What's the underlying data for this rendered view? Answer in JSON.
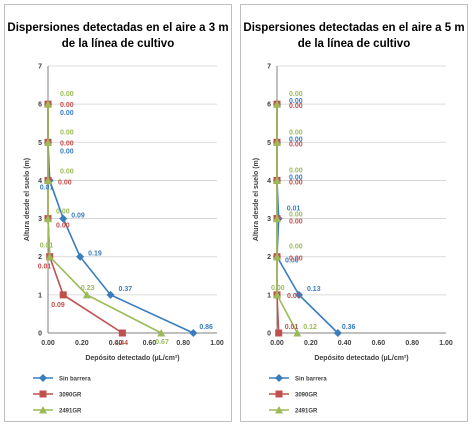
{
  "colors": {
    "series": [
      "#3a7dbf",
      "#c0504d",
      "#9bbb59"
    ],
    "grid": "#d0d0d0",
    "axis": "#808080"
  },
  "chart_data": [
    {
      "type": "line",
      "title_lines": [
        "Dispersiones detectadas en el aire a 3 m",
        "de la línea de cultivo"
      ],
      "xlabel": "Depósito detectado (µL/cm²)",
      "ylabel": "Altura desde el suelo (m)",
      "xlim": [
        0,
        1
      ],
      "ylim": [
        0,
        7
      ],
      "xticks": [
        "0.00",
        "0.20",
        "0.40",
        "0.60",
        "0.80",
        "1.00"
      ],
      "yticks": [
        "0",
        "1",
        "2",
        "3",
        "4",
        "5",
        "6",
        "7"
      ],
      "grid": "horizontal",
      "legend": "bottom",
      "series": [
        {
          "name": "Sin barrera",
          "marker": "diamond",
          "x": [
            0.86,
            0.37,
            0.19,
            0.09,
            0.01,
            0.0,
            0.0
          ],
          "y": [
            0,
            1,
            2,
            3,
            4,
            5,
            6
          ],
          "labels": [
            "0.86",
            "0.37",
            "0.19",
            "0.09",
            "0.01",
            "0.00",
            "0.00"
          ]
        },
        {
          "name": "3090GR",
          "marker": "square",
          "x": [
            0.44,
            0.09,
            0.01,
            0.0,
            0.0,
            0.0,
            0.0
          ],
          "y": [
            0,
            1,
            2,
            3,
            4,
            5,
            6
          ],
          "labels": [
            "0.44",
            "0.09",
            "0.01",
            "0.00",
            "0.00",
            "0.00",
            "0.00"
          ]
        },
        {
          "name": "2491GR",
          "marker": "triangle",
          "x": [
            0.67,
            0.23,
            0.01,
            0.0,
            0.0,
            0.0,
            0.0
          ],
          "y": [
            0,
            1,
            2,
            3,
            4,
            5,
            6
          ],
          "labels": [
            "0.67",
            "0.23",
            "0.01",
            "0.00",
            "0.00",
            "0.00",
            "0.00"
          ]
        }
      ]
    },
    {
      "type": "line",
      "title_lines": [
        "Dispersiones detectadas en el aire a 5 m",
        "de la línea de cultivo"
      ],
      "xlabel": "Depósito detectado (µL/cm²)",
      "ylabel": "Altura desde el suelo (m)",
      "xlim": [
        0,
        1
      ],
      "ylim": [
        0,
        7
      ],
      "xticks": [
        "0.00",
        "0.20",
        "0.40",
        "0.60",
        "0.80",
        "1.00"
      ],
      "yticks": [
        "0",
        "1",
        "2",
        "3",
        "4",
        "5",
        "6",
        "7"
      ],
      "grid": "horizontal",
      "legend": "bottom",
      "series": [
        {
          "name": "Sin barrera",
          "marker": "diamond",
          "x": [
            0.36,
            0.13,
            0.0,
            0.01,
            0.0,
            0.0,
            0.0
          ],
          "y": [
            0,
            1,
            2,
            3,
            4,
            5,
            6
          ],
          "labels": [
            "0.36",
            "0.13",
            "0.00",
            "0.01",
            "0.00",
            "0.00",
            "0.00"
          ]
        },
        {
          "name": "3090GR",
          "marker": "square",
          "x": [
            0.01,
            0.0,
            0.0,
            0.0,
            0.0,
            0.0,
            0.0
          ],
          "y": [
            0,
            1,
            2,
            3,
            4,
            5,
            6
          ],
          "labels": [
            "0.01",
            "0.00",
            "0.00",
            "0.00",
            "0.00",
            "0.00",
            "0.00"
          ]
        },
        {
          "name": "2491GR",
          "marker": "triangle",
          "x": [
            0.12,
            0.0,
            0.0,
            0.0,
            0.0,
            0.0,
            0.0
          ],
          "y": [
            0,
            1,
            2,
            3,
            4,
            5,
            6
          ],
          "labels": [
            "0.12",
            "0.00",
            "0.00",
            "0.00",
            "0.00",
            "0.00",
            "0.00"
          ]
        }
      ]
    }
  ]
}
